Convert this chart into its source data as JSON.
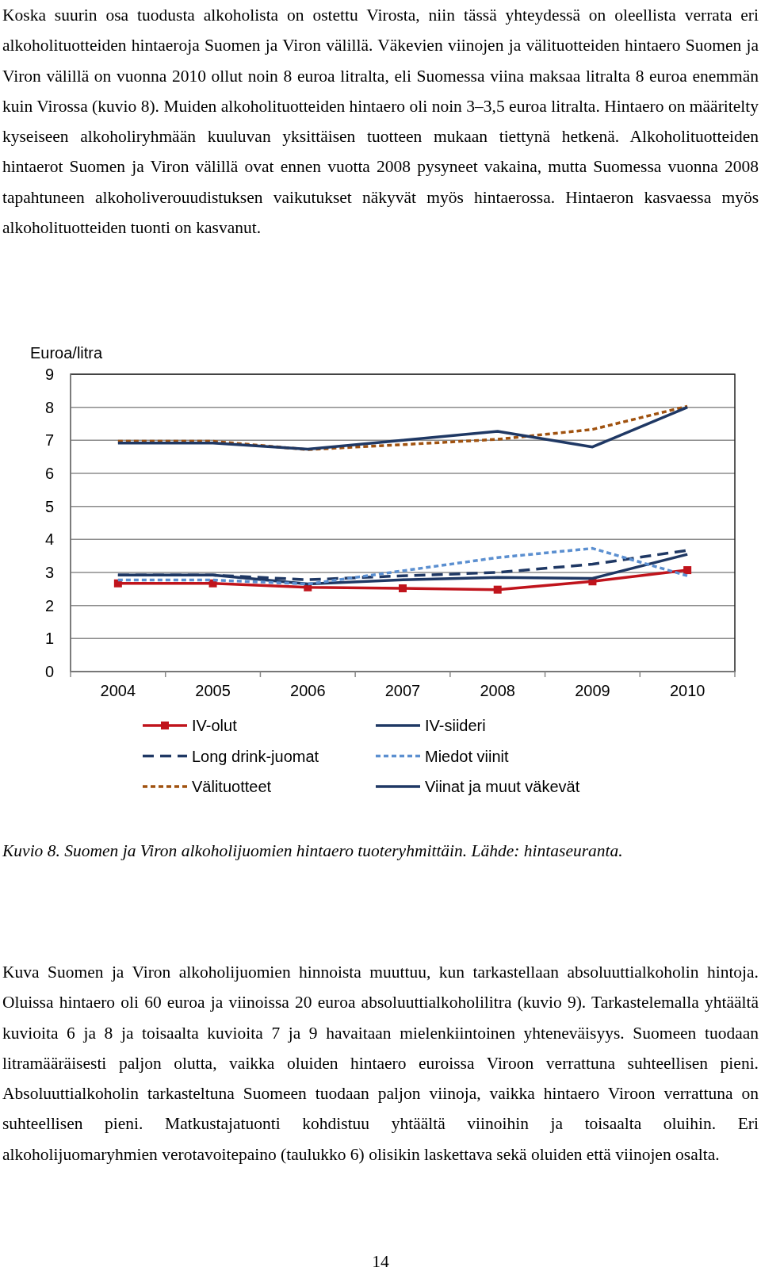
{
  "chart_data": {
    "type": "line",
    "ylabel": "Euroa/litra",
    "categories": [
      "2004",
      "2005",
      "2006",
      "2007",
      "2008",
      "2009",
      "2010"
    ],
    "ylim": [
      0,
      9
    ],
    "yticks": [
      0,
      1,
      2,
      3,
      4,
      5,
      6,
      7,
      8,
      9
    ],
    "grid": "y",
    "legend": "bottom",
    "series": [
      {
        "name": "IV-olut",
        "color": "#c0141c",
        "marker": "square",
        "line_style": "solid",
        "values": [
          2.67,
          2.67,
          2.55,
          2.52,
          2.48,
          2.73,
          3.07
        ]
      },
      {
        "name": "IV-siideri",
        "color": "#1f3864",
        "line_style": "solid",
        "values": [
          2.92,
          2.92,
          2.65,
          2.78,
          2.85,
          2.82,
          3.55
        ]
      },
      {
        "name": "Long drink-juomat",
        "color": "#1f3864",
        "line_style": "dashed",
        "values": [
          2.92,
          2.92,
          2.78,
          2.9,
          3.0,
          3.25,
          3.67
        ]
      },
      {
        "name": "Miedot viinit",
        "color": "#5b8fd0",
        "line_style": "dotted",
        "values": [
          2.77,
          2.77,
          2.65,
          3.05,
          3.45,
          3.73,
          2.9
        ]
      },
      {
        "name": "Välituotteet",
        "color": "#a0520f",
        "line_style": "dotted",
        "values": [
          6.97,
          6.97,
          6.72,
          6.87,
          7.03,
          7.33,
          8.03
        ]
      },
      {
        "name": "Viinat ja muut väkevät",
        "color": "#1f3864",
        "line_style": "solid",
        "values": [
          6.92,
          6.92,
          6.73,
          7.0,
          7.27,
          6.8,
          8.0
        ]
      }
    ],
    "annotations": [
      "Koska suurin osa tuodusta alkoholista on ostettu Virosta, niin tässä yhteydessä on oleellista verrata eri alkoholituotteiden hintaeroja Suomen ja Viron välillä. Väkevien viinojen ja välituotteiden hintaero Suomen ja Viron välillä on vuonna 2010 ollut noin 8 euroa litralta, eli Suomessa viina maksaa litralta 8 euroa enemmän kuin Virossa (kuvio 8). Muiden alkoholituotteiden hintaero oli noin 3–3,5 euroa litralta. Hintaero on määritelty kyseiseen alkoholiryhmään kuuluvan yksittäisen tuotteen mukaan tiettynä hetkenä. Alkoholituotteiden hintaerot Suomen ja Viron välillä ovat ennen vuotta 2008 pysyneet vakaina, mutta Suomessa vuonna 2008 tapahtuneen alkoholiverouudistuksen vaikutukset näkyvät myös hintaerossa. Hintaeron kasvaessa myös alkoholituotteiden tuonti on kasvanut.",
      "Kuvio 8. Suomen ja Viron alkoholijuomien hintaero tuoteryhmittäin. Lähde: hintaseuranta.",
      "Kuva Suomen ja Viron alkoholijuomien hinnoista muuttuu, kun tarkastellaan absoluuttialkoholin hintoja. Oluissa hintaero oli 60 euroa ja viinoissa 20 euroa absoluuttialkoholilitra (kuvio 9). Tarkastelemalla yhtäältä kuvioita 6 ja 8 ja toisaalta kuvioita 7 ja 9 havaitaan mielenkiintoinen yhteneväisyys. Suomeen tuodaan litramääräisesti paljon olutta, vaikka oluiden hintaero euroissa Viroon verrattuna suhteellisen pieni. Absoluuttialkoholin tarkasteltuna Suomeen tuodaan paljon viinoja, vaikka hintaero Viroon verrattuna on suhteellisen pieni. Matkustajatuonti kohdistuu yhtäältä viinoihin ja toisaalta oluihin. Eri alkoholijuomaryhmien verotavoitepaino (taulukko 6) olisikin laskettava sekä oluiden että viinojen osalta.",
      "14"
    ]
  }
}
